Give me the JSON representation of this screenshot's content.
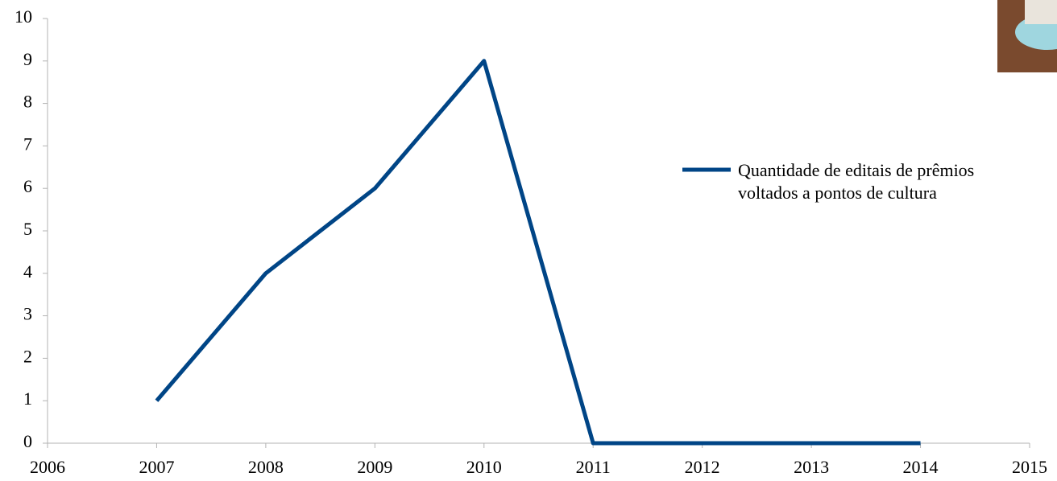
{
  "chart_data": {
    "type": "line",
    "x": [
      2007,
      2008,
      2009,
      2010,
      2011,
      2012,
      2013,
      2014
    ],
    "series": [
      {
        "name": "Quantidade de editais de prê­mios voltados a pontos de cul­tura",
        "color": "#004586",
        "values": [
          1,
          4,
          6,
          9,
          0,
          0,
          0,
          0
        ]
      }
    ],
    "xlim": [
      2006,
      2015
    ],
    "xticks": [
      2006,
      2007,
      2008,
      2009,
      2010,
      2011,
      2012,
      2013,
      2014,
      2015
    ],
    "ylim": [
      0,
      10
    ],
    "yticks": [
      0,
      1,
      2,
      3,
      4,
      5,
      6,
      7,
      8,
      9,
      10
    ],
    "grid": false,
    "legend": "right"
  }
}
